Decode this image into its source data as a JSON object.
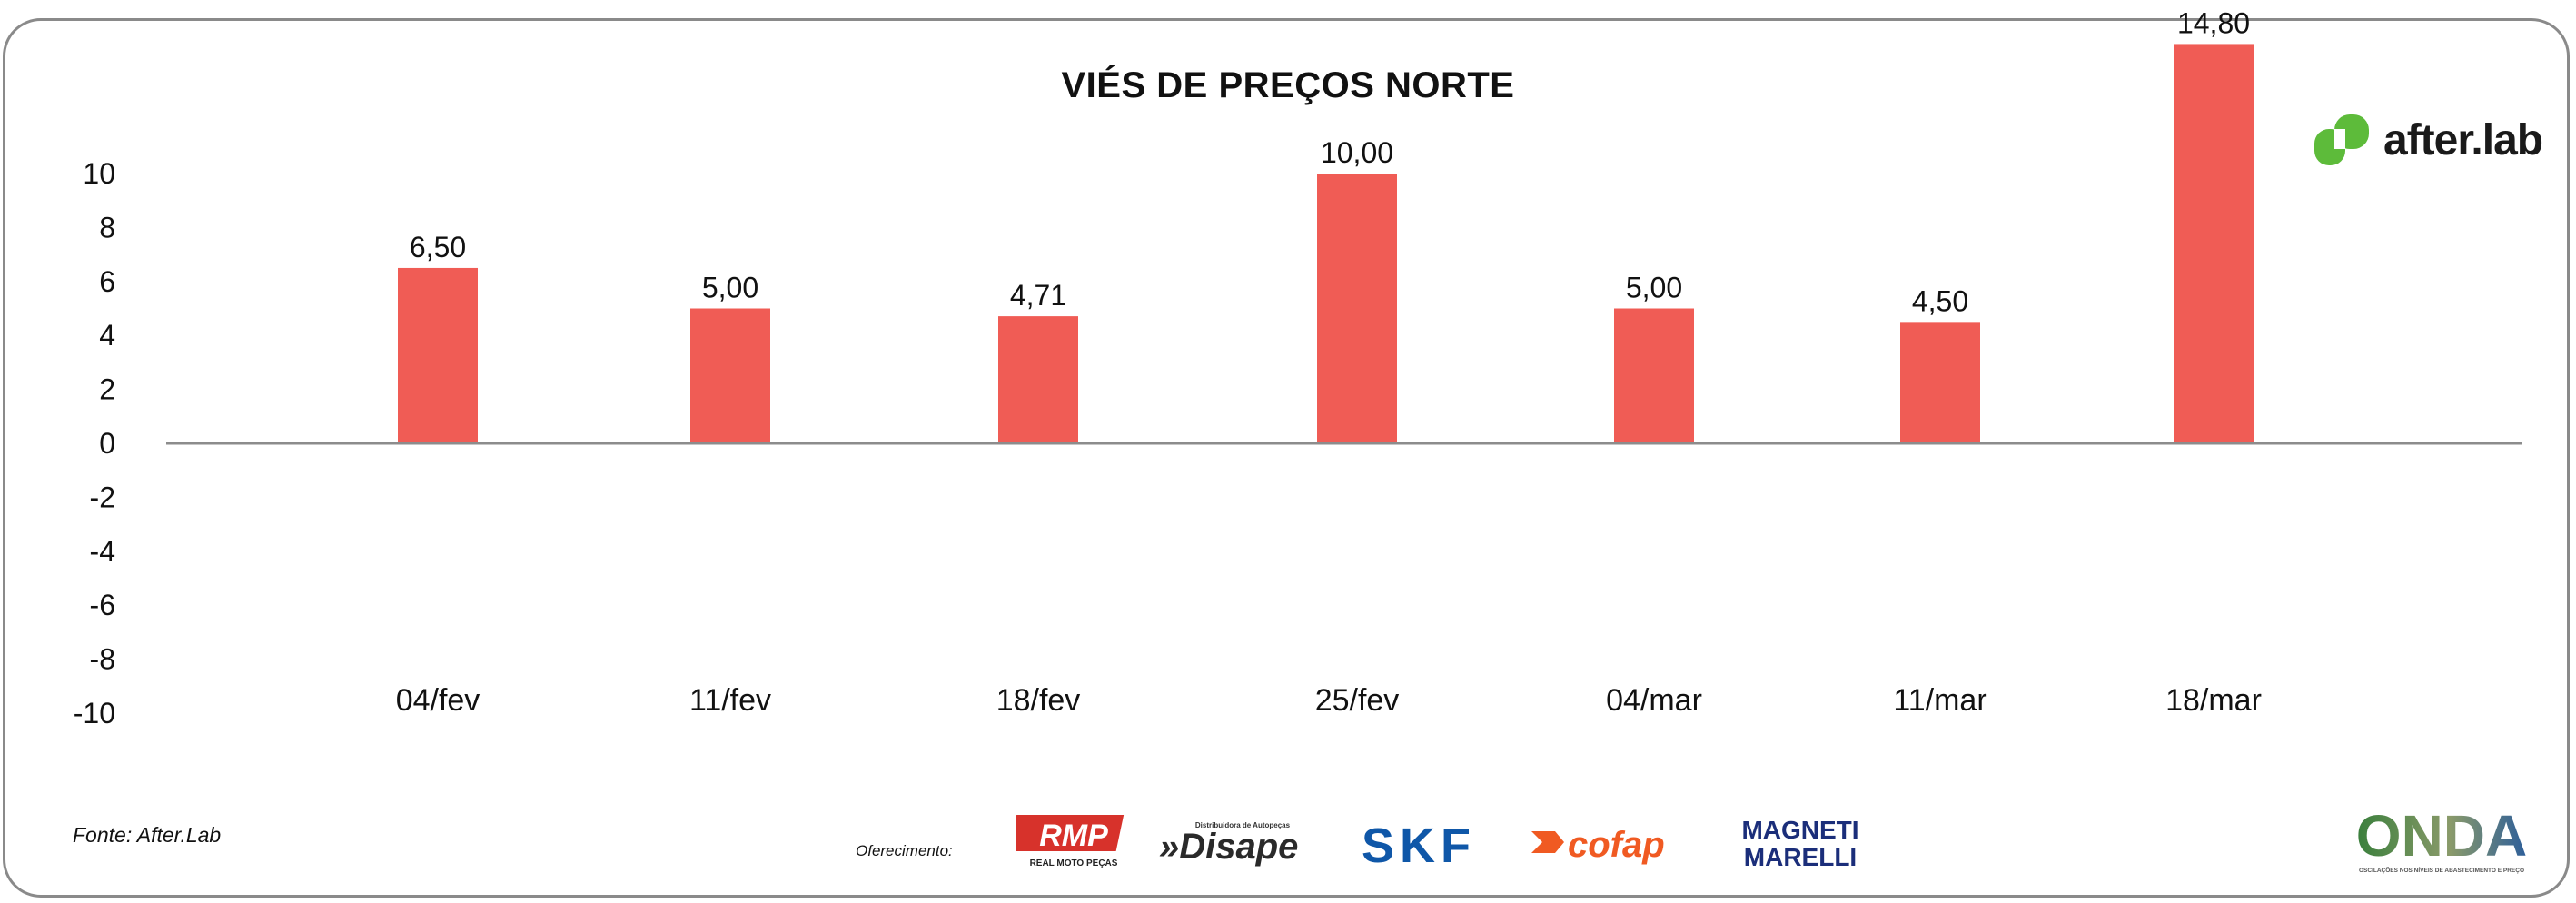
{
  "chart_data": {
    "type": "bar",
    "title": "VIÉS DE PREÇOS NORTE",
    "categories": [
      "04/fev",
      "11/fev",
      "18/fev",
      "25/fev",
      "04/mar",
      "11/mar",
      "18/mar"
    ],
    "values": [
      6.5,
      5.0,
      4.71,
      10.0,
      5.0,
      4.5,
      14.8
    ],
    "data_labels": [
      "6,50",
      "5,00",
      "4,71",
      "10,00",
      "5,00",
      "4,50",
      "14,80"
    ],
    "ylim": [
      -10,
      10
    ],
    "yticks": [
      10,
      8,
      6,
      4,
      2,
      0,
      -2,
      -4,
      -6,
      -8,
      -10
    ],
    "xlabel": "",
    "ylabel": "",
    "grid": false,
    "legend": "none",
    "bar_color": "#f05c55"
  },
  "brand": {
    "name": "after.lab",
    "color": "#5dbb3a"
  },
  "footer": {
    "source": "Fonte: After.Lab",
    "offer": "Oferecimento:",
    "sponsors": {
      "rmp": "RMP",
      "rmp_sub": "REAL MOTO PEÇAS",
      "disape": "»Disape",
      "disape_sub": "Distribuidora de Autopeças",
      "skf": "SKF",
      "cofap": "cofap",
      "magneti_1": "MAGNETI",
      "magneti_2": "MARELLI"
    },
    "onda": "ONDA",
    "onda_sub": "OSCILAÇÕES NOS NÍVEIS DE ABASTECIMENTO E PREÇO"
  }
}
